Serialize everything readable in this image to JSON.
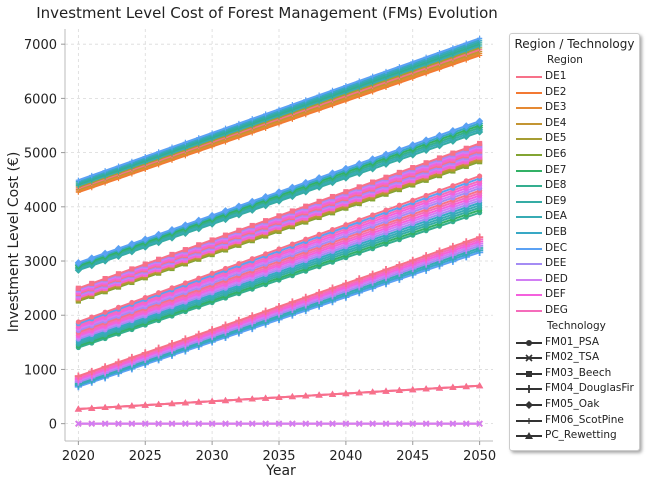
{
  "chart_data": {
    "type": "line",
    "title": "Investment Level Cost of Forest Management (FMs) Evolution",
    "xlabel": "Year",
    "ylabel": "Investment Level Cost (€)",
    "xlim": [
      2019,
      2051
    ],
    "ylim": [
      -320,
      7280
    ],
    "x": [
      2020,
      2025,
      2030,
      2035,
      2040,
      2045,
      2050
    ],
    "xticks": [
      2020,
      2025,
      2030,
      2035,
      2040,
      2045,
      2050
    ],
    "yticks": [
      0,
      1000,
      2000,
      3000,
      4000,
      5000,
      6000,
      7000
    ],
    "grid": true,
    "legend": {
      "title": "Region / Technology",
      "placement": "right-outside",
      "region_header": "Region",
      "technology_header": "Technology",
      "regions": [
        {
          "name": "DE1",
          "color": "#f77189"
        },
        {
          "name": "DE2",
          "color": "#f37932"
        },
        {
          "name": "DE3",
          "color": "#e58932"
        },
        {
          "name": "DE4",
          "color": "#c39532"
        },
        {
          "name": "DE5",
          "color": "#a69d32"
        },
        {
          "name": "DE6",
          "color": "#82a432"
        },
        {
          "name": "DE7",
          "color": "#32b166"
        },
        {
          "name": "DE8",
          "color": "#34ae8f"
        },
        {
          "name": "DE9",
          "color": "#35aca4"
        },
        {
          "name": "DEA",
          "color": "#37abb4"
        },
        {
          "name": "DEB",
          "color": "#38a8c5"
        },
        {
          "name": "DEC",
          "color": "#5ba1f4"
        },
        {
          "name": "DEE",
          "color": "#a48cf4"
        },
        {
          "name": "DED",
          "color": "#d17ef4"
        },
        {
          "name": "DEF",
          "color": "#f461dd"
        },
        {
          "name": "DEG",
          "color": "#f56cbb"
        }
      ],
      "technologies": [
        {
          "name": "FM01_PSA",
          "marker": "circle"
        },
        {
          "name": "FM02_TSA",
          "marker": "x"
        },
        {
          "name": "FM03_Beech",
          "marker": "square"
        },
        {
          "name": "FM04_DouglasFir",
          "marker": "plus"
        },
        {
          "name": "FM05_Oak",
          "marker": "diamond"
        },
        {
          "name": "FM06_ScotPine",
          "marker": "thin-plus"
        },
        {
          "name": "PC_Rewetting",
          "marker": "triangle"
        }
      ]
    },
    "bands": [
      {
        "tech": "FM06_ScotPine",
        "start": 4380,
        "end": 6950,
        "regions": [
          "DE2",
          "DE3",
          "DE4",
          "DE1",
          "DE5",
          "DEA",
          "DE8",
          "DE9",
          "DEB",
          "DEC"
        ],
        "step": 35
      },
      {
        "tech": "FM05_Oak",
        "start": 2900,
        "end": 5480,
        "regions": [
          "DE9",
          "DEA",
          "DE8",
          "DE7",
          "DEB",
          "DEC"
        ],
        "step": 40
      },
      {
        "tech": "FM03_Beech",
        "start": 2380,
        "end": 5000,
        "regions": [
          "DE6",
          "DE5",
          "DE4",
          "DEG",
          "DEF",
          "DED",
          "DEE",
          "DE1",
          "DEG",
          "DEF",
          "DED",
          "DEE",
          "DE1"
        ],
        "step": 28
      },
      {
        "tech": "FM01_PSA",
        "start": 1640,
        "end": 4230,
        "regions": [
          "DE8",
          "DE7",
          "DE9",
          "DEA",
          "DEB",
          "DEE",
          "DED",
          "DEF",
          "DEG",
          "DE1",
          "DEE",
          "DED",
          "DEF",
          "DEG",
          "DEC",
          "DE1"
        ],
        "step": 45
      },
      {
        "tech": "FM04_DouglasFir",
        "start": 780,
        "end": 3300,
        "regions": [
          "DEC",
          "DEB",
          "DEA",
          "DEE",
          "DED",
          "DEF",
          "DEG",
          "DE1"
        ],
        "step": 40
      },
      {
        "tech": "PC_Rewetting",
        "start": 270,
        "end": 700,
        "regions": [
          "DEF",
          "DEG",
          "DE1"
        ],
        "step": 0
      },
      {
        "tech": "FM02_TSA",
        "start": 0,
        "end": 0,
        "regions": [
          "DEF",
          "DEG",
          "DE1",
          "DED"
        ],
        "step": 0
      }
    ]
  }
}
